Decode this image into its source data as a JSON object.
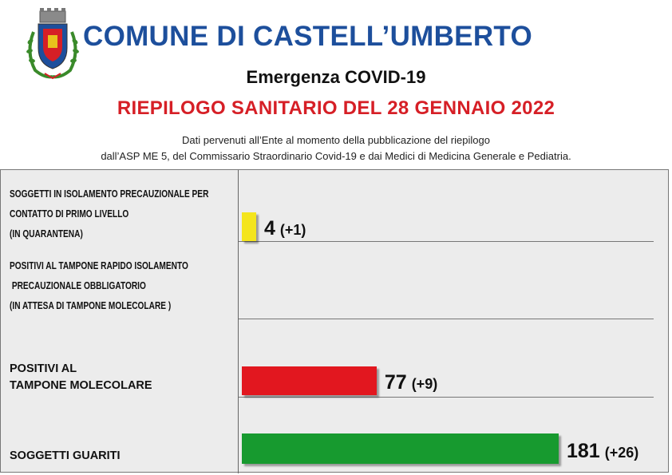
{
  "header": {
    "title": "COMUNE DI CASTELL’UMBERTO",
    "subtitle": "Emergenza COVID-19",
    "report_title": "RIEPILOGO SANITARIO DEL 28 GENNAIO 2022",
    "note_line1": "Dati pervenuti all’Ente al momento della pubblicazione del riepilogo",
    "note_line2": "dall’ASP ME 5, del Commissario Straordinario Covid-19 e dai Medici di Medicina Generale e Pediatria."
  },
  "crest": {
    "icon": "municipal-coat-of-arms",
    "colors": [
      "#1d4f9c",
      "#d61f26",
      "#e8c21c",
      "#3a8a2a"
    ]
  },
  "chart_data": {
    "type": "bar",
    "orientation": "horizontal",
    "categories": [
      "SOGGETTI IN ISOLAMENTO PRECAUZIONALE PER\nCONTATTO DI PRIMO LIVELLO\n(IN QUARANTENA)",
      "POSITIVI AL TAMPONE RAPIDO ISOLAMENTO\n PRECAUZIONALE OBBLIGATORIO\n(IN ATTESA DI TAMPONE MOLECOLARE )",
      "POSITIVI AL\nTAMPONE MOLECOLARE",
      "SOGGETTI GUARITI"
    ],
    "values": [
      4,
      null,
      77,
      181
    ],
    "value_labels": [
      "4",
      "",
      "77",
      "181"
    ],
    "delta_labels": [
      "(+1)",
      "",
      "(+9)",
      "(+26)"
    ],
    "colors": [
      "#f4e51d",
      "#cccccc",
      "#e2171f",
      "#179a2f"
    ],
    "xlim": [
      0,
      181
    ]
  }
}
